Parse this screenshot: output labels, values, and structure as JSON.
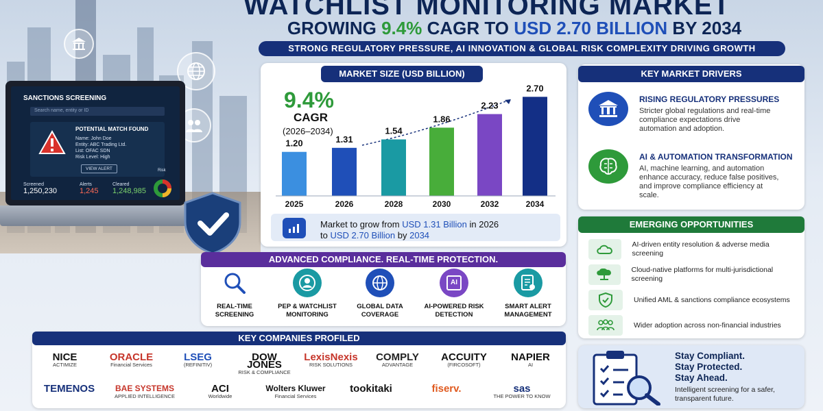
{
  "header": {
    "title": "WATCHLIST MONITORING MARKET",
    "subtitle_pre": "GROWING",
    "subtitle_cagr": "9.4%",
    "subtitle_mid": "CAGR TO",
    "subtitle_value": "USD 2.70 BILLION",
    "subtitle_post": "BY 2034",
    "tagline": "STRONG REGULATORY PRESSURE, AI INNOVATION & GLOBAL RISK COMPLEXITY DRIVING GROWTH"
  },
  "laptop": {
    "title": "SANCTIONS SCREENING",
    "search_placeholder": "Search name, entity or ID",
    "alert_title": "POTENTIAL MATCH FOUND",
    "name": "Name: John Doe",
    "entity": "Entity: ABC Trading Ltd.",
    "list": "List: OFAC SDN",
    "risk": "Risk Level: High",
    "view_alert": "VIEW ALERT",
    "screened_label": "Screened",
    "screened_value": "1,250,230",
    "alerts_label": "Alerts",
    "alerts_value": "1,245",
    "cleared_label": "Cleared",
    "cleared_value": "1,248,985",
    "risk_label": "Risk"
  },
  "market": {
    "title": "MARKET SIZE (USD BILLION)",
    "cagr": "9.4%",
    "cagr_label": "CAGR",
    "cagr_period": "(2026–2034)",
    "growth_pre": "Market to grow from",
    "growth_v1": "USD 1.31 Billion",
    "growth_mid": "in 2026",
    "growth_to": "to",
    "growth_v2": "USD 2.70 Billion",
    "growth_by": "by",
    "growth_year": "2034"
  },
  "chart_data": {
    "type": "bar",
    "categories": [
      "2025",
      "2026",
      "2028",
      "2030",
      "2032",
      "2034"
    ],
    "values": [
      1.2,
      1.31,
      1.54,
      1.86,
      2.23,
      2.7
    ],
    "labels": [
      "1.20",
      "1.31",
      "1.54",
      "1.86",
      "2.23",
      "2.70"
    ],
    "colors": [
      "#3b8fe0",
      "#1f4fb8",
      "#1a9aa3",
      "#48ad3a",
      "#7a47c4",
      "#132f86"
    ],
    "ylim": [
      0,
      2.8
    ]
  },
  "drivers": {
    "title": "KEY MARKET DRIVERS",
    "items": [
      {
        "title": "RISING REGULATORY PRESSURES",
        "text": "Stricter global regulations and real-time compliance expectations drive automation and adoption."
      },
      {
        "title": "AI & AUTOMATION TRANSFORMATION",
        "text": "AI, machine learning, and automation enhance accuracy, reduce false positives, and improve compliance efficiency at scale."
      }
    ]
  },
  "opportunities": {
    "title": "EMERGING OPPORTUNITIES",
    "items": [
      "AI-driven entity resolution & adverse media screening",
      "Cloud-native platforms for multi-jurisdictional screening",
      "Unified AML & sanctions compliance ecosystems",
      "Wider adoption across non-financial industries"
    ]
  },
  "features": {
    "title": "ADVANCED COMPLIANCE. REAL-TIME PROTECTION.",
    "items": [
      "REAL-TIME SCREENING",
      "PEP & WATCHLIST MONITORING",
      "GLOBAL DATA COVERAGE",
      "AI-POWERED RISK DETECTION",
      "SMART ALERT MANAGEMENT"
    ],
    "ai_icon_text": "AI"
  },
  "companies": {
    "title": "KEY COMPANIES PROFILED",
    "row1": [
      [
        "NICE",
        "ACTIMIZE"
      ],
      [
        "ORACLE",
        "Financial Services"
      ],
      [
        "LSEG",
        "(REFINITIV)"
      ],
      [
        "DOW JONES",
        "RISK & COMPLIANCE"
      ],
      [
        "LexisNexis",
        "RISK SOLUTIONS"
      ],
      [
        "COMPLY",
        "ADVANTAGE"
      ],
      [
        "ACCUITY",
        "(FIRCOSOFT)"
      ],
      [
        "NAPIER",
        "AI"
      ]
    ],
    "row2": [
      [
        "TEMENOS",
        ""
      ],
      [
        "BAE SYSTEMS",
        "APPLIED INTELLIGENCE"
      ],
      [
        "ACI",
        "Worldwide"
      ],
      [
        "Wolters Kluwer",
        "Financial Services"
      ],
      [
        "tookitaki",
        ""
      ],
      [
        "fiserv.",
        ""
      ],
      [
        "sas",
        "THE POWER TO KNOW"
      ]
    ]
  },
  "cta": {
    "l1": "Stay Compliant.",
    "l2": "Stay Protected.",
    "l3": "Stay Ahead.",
    "text": "Intelligent screening for a safer, transparent future."
  }
}
